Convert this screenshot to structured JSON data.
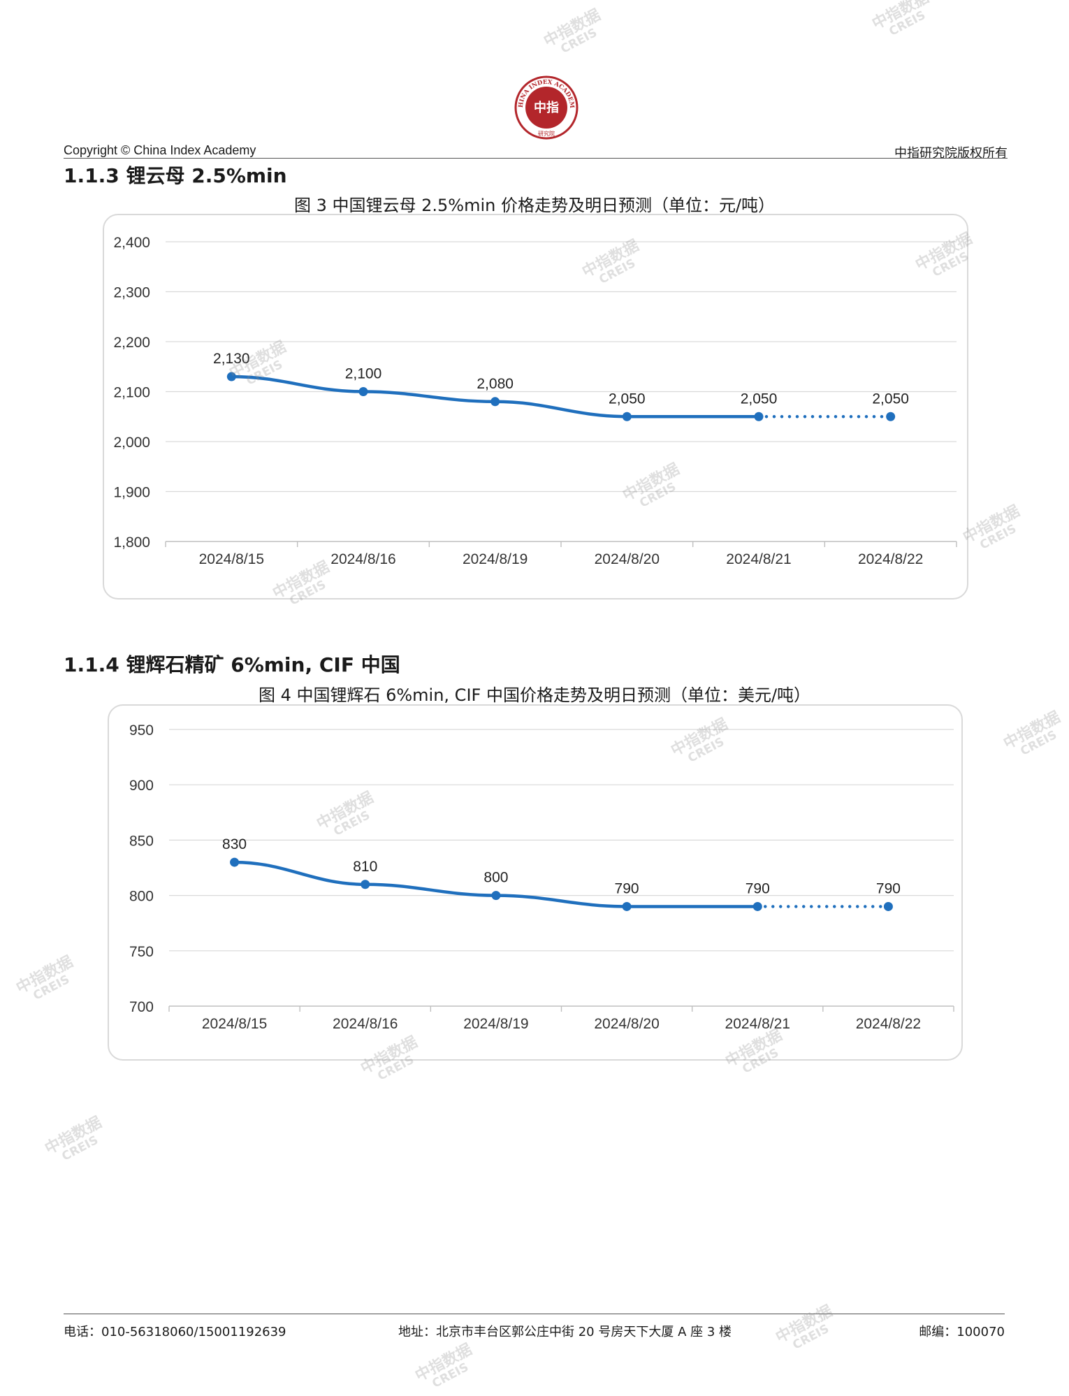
{
  "header": {
    "logo_text": "CHINA INDEX ACADEMY",
    "logo_center": "中指",
    "logo_bottom": "研究院",
    "copyright": "Copyright © China Index Academy",
    "rights": "中指研究院版权所有"
  },
  "section3": {
    "title": "1.1.3 锂云母 2.5%min"
  },
  "section4": {
    "title": "1.1.4 锂辉石精矿 6%min, CIF 中国"
  },
  "chart_data": [
    {
      "type": "line",
      "title": "图 3 中国锂云母 2.5%min 价格走势及明日预测（单位：元/吨）",
      "categories": [
        "2024/8/15",
        "2024/8/16",
        "2024/8/19",
        "2024/8/20",
        "2024/8/21",
        "2024/8/22"
      ],
      "values": [
        2130,
        2100,
        2080,
        2050,
        2050,
        2050
      ],
      "data_labels": [
        "2,130",
        "2,100",
        "2,080",
        "2,050",
        "2,050",
        "2,050"
      ],
      "yticks": [
        1800,
        1900,
        2000,
        2100,
        2200,
        2300,
        2400
      ],
      "ytick_labels": [
        "1,800",
        "1,900",
        "2,000",
        "2,100",
        "2,200",
        "2,300",
        "2,400"
      ],
      "ylim": [
        1800,
        2400
      ],
      "forecast_from_index": 4,
      "color": "#1f6fbd",
      "grid": true
    },
    {
      "type": "line",
      "title": "图 4 中国锂辉石 6%min, CIF 中国价格走势及明日预测（单位：美元/吨）",
      "categories": [
        "2024/8/15",
        "2024/8/16",
        "2024/8/19",
        "2024/8/20",
        "2024/8/21",
        "2024/8/22"
      ],
      "values": [
        830,
        810,
        800,
        790,
        790,
        790
      ],
      "data_labels": [
        "830",
        "810",
        "800",
        "790",
        "790",
        "790"
      ],
      "yticks": [
        700,
        750,
        800,
        850,
        900,
        950
      ],
      "ytick_labels": [
        "700",
        "750",
        "800",
        "850",
        "900",
        "950"
      ],
      "ylim": [
        700,
        950
      ],
      "forecast_from_index": 4,
      "color": "#1f6fbd",
      "grid": true
    }
  ],
  "footer": {
    "phone": "电话：010-56318060/15001192639",
    "address": "地址：北京市丰台区郭公庄中街 20 号房天下大厦 A 座 3 楼",
    "postcode": "邮编：100070"
  },
  "watermark": {
    "line1": "中指数据",
    "line2": "CREIS"
  }
}
